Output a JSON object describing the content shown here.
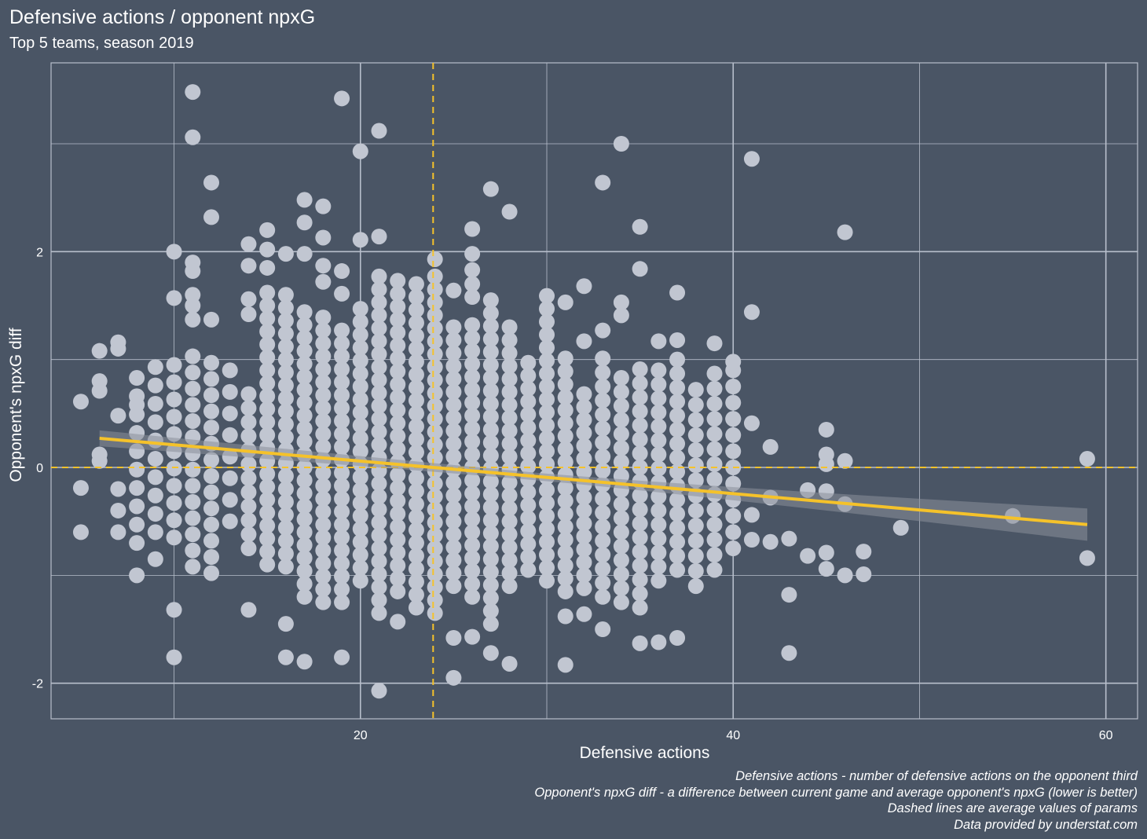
{
  "colors": {
    "background": "#4a5565",
    "grid": "#b8bfcc",
    "points": "#c1c6d1",
    "accent": "#f5c22a",
    "ribbon": "#8a909b"
  },
  "header": {
    "title": "Defensive actions / opponent npxG",
    "subtitle": "Top 5 teams, season 2019"
  },
  "captions": [
    "Defensive actions - number of defensive actions on the opponent third",
    "Opponent's npxG diff - a difference between current game and average opponent's npxG (lower is better)",
    "Dashed lines are average values of params",
    "Data provided by understat.com"
  ],
  "chart_data": {
    "type": "scatter",
    "title": "Defensive actions / opponent npxG",
    "subtitle": "Top 5 teams, season 2019",
    "xlabel": "Defensive actions",
    "ylabel": "Opponent's npxG diff",
    "xlim": [
      3.4,
      61.7
    ],
    "ylim": [
      -2.33,
      3.75
    ],
    "x_ticks": [
      20,
      40,
      60
    ],
    "y_ticks": [
      -2,
      0,
      2
    ],
    "x_minor": [
      10,
      30,
      50
    ],
    "y_minor": [
      -1,
      1,
      3
    ],
    "x_tick_labels": [
      "20",
      "40",
      "60"
    ],
    "y_tick_labels": [
      "-2",
      "0",
      "2"
    ],
    "mean_x": 23.9,
    "mean_y": 0,
    "trend": {
      "x_start": 6,
      "x_end": 59,
      "y_start": 0.27,
      "y_end": -0.53,
      "se_start": 0.07,
      "se_end": 0.15
    },
    "points_outliers": [
      [
        5,
        0.61
      ],
      [
        5,
        -0.19
      ],
      [
        5,
        -0.6
      ],
      [
        6,
        1.08
      ],
      [
        6,
        0.8
      ],
      [
        6,
        0.71
      ],
      [
        6,
        0.12
      ],
      [
        6,
        0.06
      ],
      [
        7,
        1.16
      ],
      [
        7,
        1.1
      ],
      [
        7,
        0.48
      ],
      [
        7,
        -0.2
      ],
      [
        7,
        -0.4
      ],
      [
        7,
        -0.6
      ],
      [
        11,
        3.48
      ],
      [
        11,
        3.06
      ],
      [
        11,
        1.6
      ],
      [
        12,
        2.64
      ],
      [
        12,
        2.32
      ],
      [
        19,
        3.42
      ],
      [
        20,
        2.93
      ],
      [
        21,
        3.12
      ],
      [
        21,
        2.14
      ],
      [
        20,
        2.11
      ],
      [
        10,
        -1.32
      ],
      [
        10,
        -1.76
      ],
      [
        14,
        -1.32
      ],
      [
        16,
        -1.45
      ],
      [
        16,
        -1.76
      ],
      [
        17,
        -1.8
      ],
      [
        19,
        -1.76
      ],
      [
        22,
        -1.43
      ],
      [
        25,
        -1.58
      ],
      [
        25,
        -1.95
      ],
      [
        26,
        -1.57
      ],
      [
        27,
        -1.72
      ],
      [
        28,
        -1.82
      ],
      [
        21,
        -2.07
      ],
      [
        27,
        2.58
      ],
      [
        28,
        2.37
      ],
      [
        26,
        2.21
      ],
      [
        24,
        1.93
      ],
      [
        25,
        1.64
      ],
      [
        31,
        -1.38
      ],
      [
        31,
        -1.83
      ],
      [
        32,
        -1.36
      ],
      [
        33,
        -1.5
      ],
      [
        35,
        -1.63
      ],
      [
        36,
        -1.62
      ],
      [
        37,
        -1.58
      ],
      [
        33,
        2.64
      ],
      [
        34,
        3.0
      ],
      [
        35,
        2.23
      ],
      [
        35,
        1.84
      ],
      [
        37,
        1.62
      ],
      [
        41,
        2.86
      ],
      [
        41,
        1.44
      ],
      [
        39,
        1.15
      ],
      [
        40,
        0.98
      ],
      [
        40,
        0.45
      ],
      [
        41,
        0.41
      ],
      [
        42,
        0.19
      ],
      [
        41,
        -0.44
      ],
      [
        41,
        -0.67
      ],
      [
        42,
        -0.28
      ],
      [
        42,
        -0.69
      ],
      [
        43,
        -0.66
      ],
      [
        43,
        -1.18
      ],
      [
        43,
        -1.72
      ],
      [
        44,
        -0.82
      ],
      [
        44,
        -0.21
      ],
      [
        45,
        0.35
      ],
      [
        45,
        0.12
      ],
      [
        45,
        0.03
      ],
      [
        45,
        -0.22
      ],
      [
        45,
        -0.79
      ],
      [
        45,
        -0.94
      ],
      [
        46,
        2.18
      ],
      [
        46,
        0.06
      ],
      [
        46,
        -0.34
      ],
      [
        46,
        -1.0
      ],
      [
        47,
        -0.78
      ],
      [
        47,
        -0.99
      ],
      [
        49,
        -0.56
      ],
      [
        55,
        -0.45
      ],
      [
        59,
        0.08
      ],
      [
        59,
        -0.84
      ],
      [
        32,
        1.68
      ],
      [
        31,
        1.53
      ],
      [
        32,
        1.17
      ],
      [
        33,
        1.27
      ],
      [
        34,
        1.53
      ],
      [
        34,
        1.41
      ],
      [
        36,
        1.17
      ],
      [
        37,
        1.18
      ]
    ],
    "columns": [
      {
        "x": 8,
        "y_min": -0.7,
        "y_max": 0.85,
        "step": 0.17,
        "extra": [
          -1.0,
          0.58
        ]
      },
      {
        "x": 9,
        "y_min": -0.6,
        "y_max": 1.05,
        "step": 0.17,
        "extra": [
          -0.85
        ]
      },
      {
        "x": 10,
        "y_min": -0.65,
        "y_max": 1.0,
        "step": 0.16,
        "extra": [
          2.0,
          1.57
        ]
      },
      {
        "x": 11,
        "y_min": -0.92,
        "y_max": 1.1,
        "step": 0.15,
        "extra": [
          1.9,
          1.82,
          1.5,
          1.37
        ]
      },
      {
        "x": 12,
        "y_min": -0.98,
        "y_max": 1.1,
        "step": 0.15,
        "extra": [
          1.37
        ]
      },
      {
        "x": 13,
        "y_min": -0.5,
        "y_max": 1.0,
        "step": 0.2,
        "extra": []
      },
      {
        "x": 14,
        "y_min": -0.75,
        "y_max": 0.8,
        "step": 0.13,
        "extra": [
          2.07,
          1.87,
          1.56,
          1.42
        ]
      },
      {
        "x": 15,
        "y_min": -0.9,
        "y_max": 1.62,
        "step": 0.12,
        "extra": [
          2.2,
          2.02,
          1.85
        ]
      },
      {
        "x": 16,
        "y_min": -0.92,
        "y_max": 1.62,
        "step": 0.12,
        "extra": [
          1.98
        ]
      },
      {
        "x": 17,
        "y_min": -1.2,
        "y_max": 1.55,
        "step": 0.12,
        "extra": [
          2.48,
          2.27,
          1.98
        ]
      },
      {
        "x": 18,
        "y_min": -1.25,
        "y_max": 1.4,
        "step": 0.12,
        "extra": [
          2.42,
          2.13,
          1.87,
          1.72
        ]
      },
      {
        "x": 19,
        "y_min": -1.25,
        "y_max": 1.32,
        "step": 0.12,
        "extra": [
          1.82,
          1.61
        ]
      },
      {
        "x": 20,
        "y_min": -1.05,
        "y_max": 1.55,
        "step": 0.12,
        "extra": []
      },
      {
        "x": 21,
        "y_min": -1.35,
        "y_max": 1.82,
        "step": 0.12,
        "extra": []
      },
      {
        "x": 22,
        "y_min": -1.15,
        "y_max": 1.82,
        "step": 0.12,
        "extra": []
      },
      {
        "x": 23,
        "y_min": -1.3,
        "y_max": 1.75,
        "step": 0.12,
        "extra": []
      },
      {
        "x": 24,
        "y_min": -1.35,
        "y_max": 1.8,
        "step": 0.12,
        "extra": []
      },
      {
        "x": 25,
        "y_min": -1.1,
        "y_max": 1.35,
        "step": 0.12,
        "extra": []
      },
      {
        "x": 26,
        "y_min": -1.2,
        "y_max": 1.32,
        "step": 0.12,
        "extra": [
          1.98,
          1.83,
          1.7,
          1.58
        ]
      },
      {
        "x": 27,
        "y_min": -1.45,
        "y_max": 1.58,
        "step": 0.12,
        "extra": []
      },
      {
        "x": 28,
        "y_min": -1.1,
        "y_max": 1.38,
        "step": 0.12,
        "extra": []
      },
      {
        "x": 29,
        "y_min": -0.95,
        "y_max": 1.0,
        "step": 0.12,
        "extra": []
      },
      {
        "x": 30,
        "y_min": -1.05,
        "y_max": 1.68,
        "step": 0.12,
        "extra": []
      },
      {
        "x": 31,
        "y_min": -1.15,
        "y_max": 1.05,
        "step": 0.12,
        "extra": []
      },
      {
        "x": 32,
        "y_min": -1.12,
        "y_max": 0.78,
        "step": 0.12,
        "extra": []
      },
      {
        "x": 33,
        "y_min": -1.2,
        "y_max": 1.02,
        "step": 0.13,
        "extra": []
      },
      {
        "x": 34,
        "y_min": -1.25,
        "y_max": 0.92,
        "step": 0.13,
        "extra": []
      },
      {
        "x": 35,
        "y_min": -1.3,
        "y_max": 0.98,
        "step": 0.13,
        "extra": []
      },
      {
        "x": 36,
        "y_min": -1.05,
        "y_max": 1.0,
        "step": 0.13,
        "extra": []
      },
      {
        "x": 37,
        "y_min": -0.95,
        "y_max": 1.05,
        "step": 0.13,
        "extra": []
      },
      {
        "x": 38,
        "y_min": -1.1,
        "y_max": 0.75,
        "step": 0.14,
        "extra": []
      },
      {
        "x": 39,
        "y_min": -0.95,
        "y_max": 0.9,
        "step": 0.14,
        "extra": []
      },
      {
        "x": 40,
        "y_min": -0.75,
        "y_max": 0.9,
        "step": 0.15,
        "extra": []
      }
    ]
  }
}
